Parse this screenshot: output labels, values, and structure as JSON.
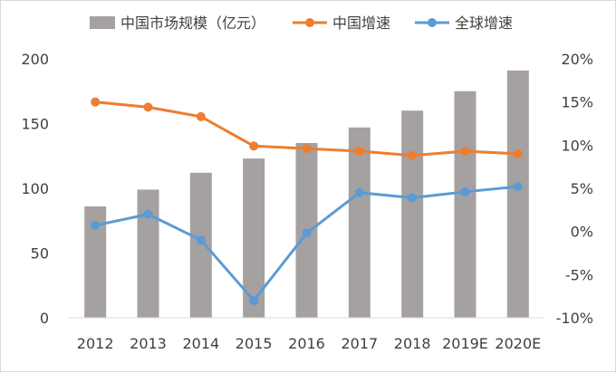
{
  "chart_data": {
    "type": "bar",
    "categories": [
      "2012",
      "2013",
      "2014",
      "2015",
      "2016",
      "2017",
      "2018",
      "2019E",
      "2020E"
    ],
    "series": [
      {
        "name": "中国市场规模（亿元）",
        "type": "bar",
        "axis": "left",
        "color": "#a5a1a0",
        "values": [
          86,
          99,
          112,
          123,
          135,
          147,
          160,
          175,
          191
        ]
      },
      {
        "name": "中国增速",
        "type": "line",
        "axis": "right",
        "color": "#ed7d31",
        "values": [
          15.0,
          14.4,
          13.3,
          9.9,
          9.6,
          9.3,
          8.8,
          9.3,
          9.0
        ]
      },
      {
        "name": "全球增速",
        "type": "line",
        "axis": "right",
        "color": "#5b9bd5",
        "values": [
          0.7,
          2.0,
          -1.0,
          -8.0,
          -0.2,
          4.5,
          3.9,
          4.6,
          5.2
        ]
      }
    ],
    "y_left": {
      "ylim": [
        0,
        200
      ],
      "ticks": [
        "0",
        "50",
        "100",
        "150",
        "200"
      ]
    },
    "y_right": {
      "ylim": [
        -10,
        20
      ],
      "ticks": [
        "-10%",
        "-5%",
        "0%",
        "5%",
        "10%",
        "15%",
        "20%"
      ]
    },
    "grid": false,
    "legend_position": "top"
  }
}
